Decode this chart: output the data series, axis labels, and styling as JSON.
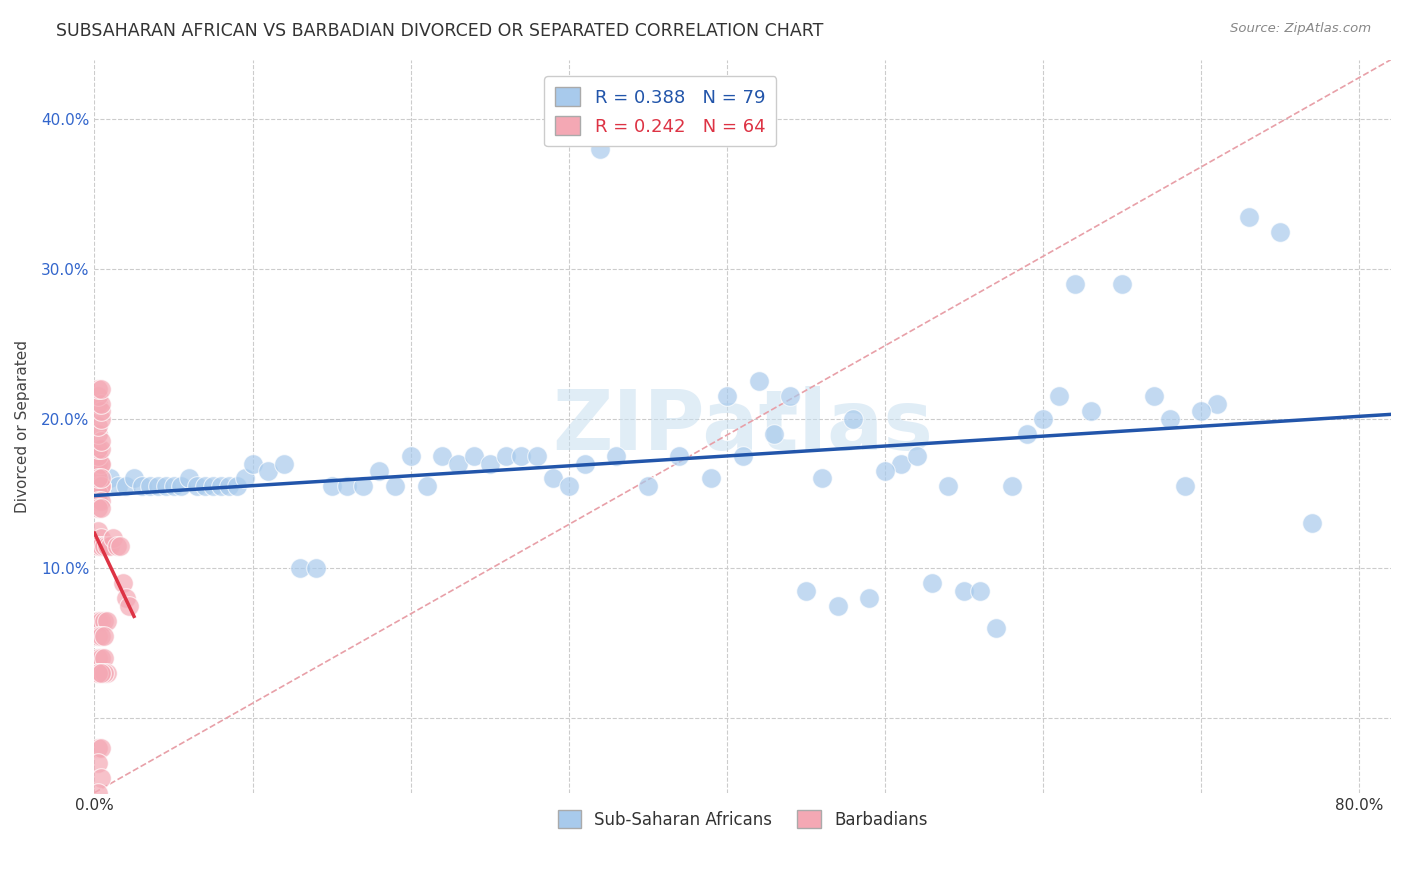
{
  "title": "SUBSAHARAN AFRICAN VS BARBADIAN DIVORCED OR SEPARATED CORRELATION CHART",
  "source": "Source: ZipAtlas.com",
  "ylabel": "Divorced or Separated",
  "watermark": "ZIPatlas",
  "xlim": [
    0.0,
    0.82
  ],
  "ylim": [
    -0.05,
    0.44
  ],
  "xtick_positions": [
    0.0,
    0.1,
    0.2,
    0.3,
    0.4,
    0.5,
    0.6,
    0.7,
    0.8
  ],
  "ytick_positions": [
    0.0,
    0.1,
    0.2,
    0.3,
    0.4
  ],
  "blue_R": 0.388,
  "blue_N": 79,
  "pink_R": 0.242,
  "pink_N": 64,
  "blue_color": "#A8CAEC",
  "pink_color": "#F4A8B4",
  "blue_line_color": "#2255AA",
  "pink_line_color": "#DD3344",
  "diag_line_color": "#E8A0A8",
  "grid_color": "#CCCCCC",
  "blue_scatter_x": [
    0.32,
    0.005,
    0.01,
    0.015,
    0.02,
    0.025,
    0.03,
    0.035,
    0.04,
    0.045,
    0.05,
    0.055,
    0.06,
    0.065,
    0.07,
    0.075,
    0.08,
    0.085,
    0.09,
    0.095,
    0.1,
    0.11,
    0.12,
    0.13,
    0.14,
    0.15,
    0.16,
    0.17,
    0.18,
    0.19,
    0.2,
    0.21,
    0.22,
    0.23,
    0.24,
    0.25,
    0.26,
    0.27,
    0.28,
    0.29,
    0.3,
    0.31,
    0.33,
    0.35,
    0.37,
    0.39,
    0.41,
    0.43,
    0.45,
    0.47,
    0.49,
    0.51,
    0.53,
    0.55,
    0.57,
    0.59,
    0.61,
    0.63,
    0.65,
    0.67,
    0.69,
    0.71,
    0.73,
    0.75,
    0.77,
    0.4,
    0.42,
    0.44,
    0.46,
    0.48,
    0.5,
    0.52,
    0.54,
    0.56,
    0.58,
    0.6,
    0.62,
    0.68,
    0.7
  ],
  "blue_scatter_y": [
    0.38,
    0.155,
    0.16,
    0.155,
    0.155,
    0.16,
    0.155,
    0.155,
    0.155,
    0.155,
    0.155,
    0.155,
    0.16,
    0.155,
    0.155,
    0.155,
    0.155,
    0.155,
    0.155,
    0.16,
    0.17,
    0.165,
    0.17,
    0.1,
    0.1,
    0.155,
    0.155,
    0.155,
    0.165,
    0.155,
    0.175,
    0.155,
    0.175,
    0.17,
    0.175,
    0.17,
    0.175,
    0.175,
    0.175,
    0.16,
    0.155,
    0.17,
    0.175,
    0.155,
    0.175,
    0.16,
    0.175,
    0.19,
    0.085,
    0.075,
    0.08,
    0.17,
    0.09,
    0.085,
    0.06,
    0.19,
    0.215,
    0.205,
    0.29,
    0.215,
    0.155,
    0.21,
    0.335,
    0.325,
    0.13,
    0.215,
    0.225,
    0.215,
    0.16,
    0.2,
    0.165,
    0.175,
    0.155,
    0.085,
    0.155,
    0.2,
    0.29,
    0.2,
    0.205
  ],
  "pink_scatter_x": [
    0.002,
    0.004,
    0.002,
    0.004,
    0.002,
    0.004,
    0.002,
    0.004,
    0.002,
    0.004,
    0.002,
    0.004,
    0.002,
    0.004,
    0.002,
    0.004,
    0.002,
    0.004,
    0.002,
    0.004,
    0.002,
    0.004,
    0.002,
    0.004,
    0.002,
    0.004,
    0.002,
    0.004,
    0.002,
    0.004,
    0.002,
    0.004,
    0.002,
    0.004,
    0.006,
    0.008,
    0.01,
    0.012,
    0.014,
    0.016,
    0.018,
    0.02,
    0.022,
    0.002,
    0.004,
    0.006,
    0.008,
    0.002,
    0.004,
    0.006,
    0.002,
    0.004,
    0.006,
    0.008,
    0.002,
    0.004,
    0.006,
    0.002,
    0.004,
    0.002,
    0.004,
    0.002,
    0.004,
    0.002
  ],
  "pink_scatter_y": [
    0.165,
    0.155,
    0.155,
    0.155,
    0.155,
    0.155,
    0.15,
    0.155,
    0.145,
    0.145,
    0.17,
    0.17,
    0.175,
    0.17,
    0.18,
    0.18,
    0.19,
    0.185,
    0.195,
    0.2,
    0.21,
    0.205,
    0.215,
    0.21,
    0.22,
    0.22,
    0.16,
    0.16,
    0.14,
    0.14,
    0.125,
    0.12,
    0.115,
    0.115,
    0.115,
    0.115,
    0.115,
    0.12,
    0.115,
    0.115,
    0.09,
    0.08,
    0.075,
    0.065,
    0.065,
    0.065,
    0.065,
    0.055,
    0.055,
    0.055,
    0.04,
    0.04,
    0.04,
    0.03,
    0.03,
    0.03,
    0.03,
    0.03,
    0.03,
    -0.02,
    -0.02,
    -0.03,
    -0.04,
    -0.05
  ]
}
